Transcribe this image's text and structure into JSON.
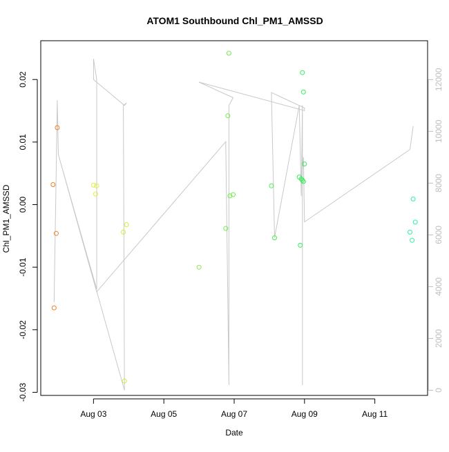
{
  "chart_data": {
    "type": "scatter",
    "title": "ATOM1 Southbound Chl_PM1_AMSSD",
    "xlabel": "Date",
    "ylabel": "Chl_PM1_AMSSD",
    "xlim": [
      "2016-08-01T12:00",
      "2016-08-12T12:00"
    ],
    "ylim": [
      -0.0305,
      0.0262
    ],
    "y_ticks": [
      {
        "value": -0.03,
        "label": "-0.03"
      },
      {
        "value": -0.02,
        "label": "-0.02"
      },
      {
        "value": -0.01,
        "label": "-0.01"
      },
      {
        "value": 0.0,
        "label": "0.00"
      },
      {
        "value": 0.01,
        "label": "0.01"
      },
      {
        "value": 0.02,
        "label": "0.02"
      }
    ],
    "x_ticks": [
      {
        "value": "2016-08-03T00:00",
        "label": "Aug 03"
      },
      {
        "value": "2016-08-05T00:00",
        "label": "Aug 05"
      },
      {
        "value": "2016-08-07T00:00",
        "label": "Aug 07"
      },
      {
        "value": "2016-08-09T00:00",
        "label": "Aug 09"
      },
      {
        "value": "2016-08-11T00:00",
        "label": "Aug 11"
      }
    ],
    "secondary_y": {
      "ylim": [
        -200,
        13500
      ],
      "ticks": [
        {
          "value": 0,
          "label": "0"
        },
        {
          "value": 2000,
          "label": "2000"
        },
        {
          "value": 4000,
          "label": "4000"
        },
        {
          "value": 6000,
          "label": "6000"
        },
        {
          "value": 8000,
          "label": "8000"
        },
        {
          "value": 10000,
          "label": "10000"
        },
        {
          "value": 12000,
          "label": "12000"
        }
      ]
    },
    "grid": false,
    "colors": {
      "axis": "#000000",
      "secondary_axis": "#bebebe",
      "line": "#c8c8c8"
    },
    "series": [
      {
        "kind": "points",
        "points": [
          {
            "x": "2016-08-01T20:24",
            "y": 0.0032,
            "color": "#f08020"
          },
          {
            "x": "2016-08-01T21:07",
            "y": -0.0165,
            "color": "#f08020"
          },
          {
            "x": "2016-08-01T22:34",
            "y": -0.0046,
            "color": "#f08020"
          },
          {
            "x": "2016-08-01T23:17",
            "y": 0.0123,
            "color": "#f08020"
          },
          {
            "x": "2016-08-03T00:00",
            "y": 0.0031,
            "color": "#e6ee3c"
          },
          {
            "x": "2016-08-03T01:26",
            "y": 0.0017,
            "color": "#e6ee3c"
          },
          {
            "x": "2016-08-03T02:10",
            "y": 0.003,
            "color": "#e6ee3c"
          },
          {
            "x": "2016-08-03T20:24",
            "y": -0.0044,
            "color": "#d2ee3c"
          },
          {
            "x": "2016-08-03T21:07",
            "y": -0.0282,
            "color": "#d2ee3c"
          },
          {
            "x": "2016-08-03T22:34",
            "y": -0.0032,
            "color": "#d2ee3c"
          },
          {
            "x": "2016-08-06T00:00",
            "y": -0.01,
            "color": "#8ee84a"
          },
          {
            "x": "2016-08-06T18:14",
            "y": -0.0038,
            "color": "#70ee4a"
          },
          {
            "x": "2016-08-06T19:41",
            "y": 0.0142,
            "color": "#70ee4a"
          },
          {
            "x": "2016-08-06T20:24",
            "y": 0.0242,
            "color": "#70ee4a"
          },
          {
            "x": "2016-08-06T21:07",
            "y": 0.0014,
            "color": "#70ee4a"
          },
          {
            "x": "2016-08-06T23:17",
            "y": 0.0016,
            "color": "#70ee4a"
          },
          {
            "x": "2016-08-08T01:26",
            "y": 0.003,
            "color": "#44ee4a"
          },
          {
            "x": "2016-08-08T03:36",
            "y": -0.0053,
            "color": "#44ee4a"
          },
          {
            "x": "2016-08-08T20:24",
            "y": 0.0044,
            "color": "#30ee5a"
          },
          {
            "x": "2016-08-08T21:07",
            "y": -0.0065,
            "color": "#30ee5a"
          },
          {
            "x": "2016-08-08T21:50",
            "y": 0.0041,
            "color": "#30ee5a"
          },
          {
            "x": "2016-08-08T22:34",
            "y": 0.0039,
            "color": "#30ee5a"
          },
          {
            "x": "2016-08-08T22:34",
            "y": 0.0211,
            "color": "#30ee5a"
          },
          {
            "x": "2016-08-08T23:17",
            "y": 0.018,
            "color": "#30ee5a"
          },
          {
            "x": "2016-08-08T23:17",
            "y": 0.0037,
            "color": "#30ee5a"
          },
          {
            "x": "2016-08-09T00:00",
            "y": 0.0065,
            "color": "#30ee5a"
          },
          {
            "x": "2016-08-12T00:00",
            "y": -0.0044,
            "color": "#2eeea0"
          },
          {
            "x": "2016-08-12T01:26",
            "y": -0.0057,
            "color": "#2eeea0"
          },
          {
            "x": "2016-08-12T02:10",
            "y": 0.0009,
            "color": "#2eeea0"
          },
          {
            "x": "2016-08-12T03:36",
            "y": -0.0028,
            "color": "#2eeea0"
          }
        ]
      },
      {
        "kind": "line",
        "axis": "secondary",
        "points": [
          {
            "x": "2016-08-01T21:07",
            "y": 3400
          },
          {
            "x": "2016-08-01T22:34",
            "y": 8500
          },
          {
            "x": "2016-08-01T23:17",
            "y": 11200
          },
          {
            "x": "2016-08-02T00:00",
            "y": 9100
          },
          {
            "x": "2016-08-03T02:10",
            "y": 3900
          },
          {
            "x": "2016-08-03T02:10",
            "y": 12000
          },
          {
            "x": "2016-08-03T00:00",
            "y": 12800
          },
          {
            "x": "2016-08-03T00:00",
            "y": 12000
          },
          {
            "x": "2016-08-03T21:07",
            "y": 11000
          },
          {
            "x": "2016-08-03T22:34",
            "y": 11100
          },
          {
            "x": "2016-08-03T20:24",
            "y": 11000
          },
          {
            "x": "2016-08-03T21:07",
            "y": 0
          },
          {
            "x": "2016-08-02T00:00",
            "y": 9100
          },
          {
            "x": "2016-08-03T02:10",
            "y": 3800
          },
          {
            "x": "2016-08-06T18:14",
            "y": 9600
          },
          {
            "x": "2016-08-06T20:24",
            "y": 200
          },
          {
            "x": "2016-08-06T20:24",
            "y": 11000
          },
          {
            "x": "2016-08-06T23:17",
            "y": 11300
          },
          {
            "x": "2016-08-06T00:00",
            "y": 11900
          },
          {
            "x": "2016-08-09T00:00",
            "y": 10800
          },
          {
            "x": "2016-08-09T00:00",
            "y": 10900
          },
          {
            "x": "2016-08-08T01:26",
            "y": 11500
          },
          {
            "x": "2016-08-08T03:36",
            "y": 5900
          },
          {
            "x": "2016-08-08T20:24",
            "y": 11000
          },
          {
            "x": "2016-08-08T21:50",
            "y": 7500
          },
          {
            "x": "2016-08-08T22:34",
            "y": 11000
          },
          {
            "x": "2016-08-08T22:34",
            "y": 200
          },
          {
            "x": "2016-08-08T22:34",
            "y": 8500
          },
          {
            "x": "2016-08-08T23:17",
            "y": 9000
          },
          {
            "x": "2016-08-09T00:00",
            "y": 6500
          },
          {
            "x": "2016-08-12T00:00",
            "y": 9300
          },
          {
            "x": "2016-08-12T02:10",
            "y": 10200
          }
        ]
      }
    ]
  }
}
